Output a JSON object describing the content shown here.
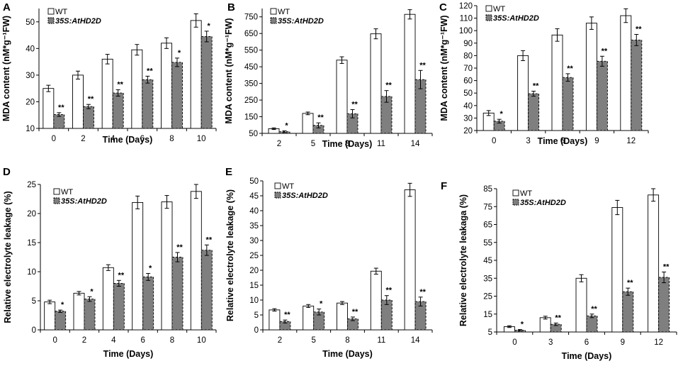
{
  "colors": {
    "wt_fill": "#ffffff",
    "oe_fill": "#7f7f7f",
    "stroke": "#000000"
  },
  "chart_data": [
    {
      "panel": "A",
      "type": "bar",
      "xlabel": "Time (Days)",
      "ylabel": "MDA content (nM*g⁻¹FW)",
      "ylim": [
        10,
        55
      ],
      "yticks": [
        10,
        20,
        30,
        40,
        50
      ],
      "categories": [
        "0",
        "2",
        "4",
        "6",
        "8",
        "10"
      ],
      "legend": [
        "WT",
        "35S:AtHD2D"
      ],
      "legend_pos": "top-left",
      "series": [
        {
          "name": "WT",
          "values": [
            25,
            30,
            36,
            39.5,
            42,
            50.5
          ],
          "errors": [
            1.2,
            1.5,
            1.8,
            2,
            2,
            2.5
          ],
          "sig": [
            "",
            "",
            "",
            "",
            "",
            ""
          ]
        },
        {
          "name": "35S:AtHD2D",
          "values": [
            15.2,
            18.2,
            23.3,
            28.3,
            34.8,
            44.5
          ],
          "errors": [
            0.7,
            0.8,
            1.2,
            1.3,
            1.6,
            2
          ],
          "sig": [
            "**",
            "**",
            "**",
            "**",
            "*",
            "*"
          ]
        }
      ]
    },
    {
      "panel": "B",
      "type": "bar",
      "xlabel": "Time (Days)",
      "ylabel": "MDA content (nM*g⁻¹FW)",
      "ylim": [
        50,
        800
      ],
      "yticks": [
        50,
        150,
        250,
        350,
        450,
        550,
        650,
        750
      ],
      "categories": [
        "2",
        "5",
        "8",
        "11",
        "14"
      ],
      "legend": [
        "WT",
        "35S:AtHD2D"
      ],
      "legend_pos": "top-left",
      "series": [
        {
          "name": "WT",
          "values": [
            78,
            170,
            490,
            648,
            765
          ],
          "errors": [
            5,
            8,
            20,
            30,
            28
          ],
          "sig": [
            "",
            "",
            "",
            "",
            ""
          ]
        },
        {
          "name": "35S:AtHD2D",
          "values": [
            60,
            98,
            168,
            272,
            373
          ],
          "errors": [
            5,
            15,
            25,
            35,
            55
          ],
          "sig": [
            "*",
            "**",
            "**",
            "**",
            "**"
          ]
        }
      ]
    },
    {
      "panel": "C",
      "type": "bar",
      "xlabel": "Time (Days)",
      "ylabel": "MDA content (nM*g⁻¹FW)",
      "ylim": [
        20,
        120
      ],
      "yticks": [
        20,
        30,
        40,
        50,
        60,
        70,
        80,
        90,
        100,
        110,
        120
      ],
      "categories": [
        "0",
        "3",
        "6",
        "9",
        "12"
      ],
      "legend": [
        "WT",
        "35S:AtHD2D"
      ],
      "legend_pos": "top-left",
      "series": [
        {
          "name": "WT",
          "values": [
            34,
            80,
            96.5,
            106,
            112
          ],
          "errors": [
            2,
            4,
            5,
            5,
            5.5
          ],
          "sig": [
            "",
            "",
            "",
            "",
            ""
          ]
        },
        {
          "name": "35S:AtHD2D",
          "values": [
            27.5,
            49.5,
            62.5,
            75.5,
            92.5
          ],
          "errors": [
            1.5,
            2,
            3,
            4,
            4.5
          ],
          "sig": [
            "*",
            "**",
            "**",
            "**",
            "**"
          ]
        }
      ]
    },
    {
      "panel": "D",
      "type": "bar",
      "xlabel": "Time (Days)",
      "ylabel": "Relative electrolyte leakage (%)",
      "ylim": [
        0,
        25
      ],
      "yticks": [
        0,
        5,
        10,
        15,
        20,
        25
      ],
      "categories": [
        "0",
        "2",
        "4",
        "6",
        "8",
        "10"
      ],
      "legend": [
        "WT",
        "35S:AtHD2D"
      ],
      "legend_pos": "top-left",
      "series": [
        {
          "name": "WT",
          "values": [
            4.8,
            6.3,
            10.7,
            21.9,
            22,
            23.8
          ],
          "errors": [
            0.3,
            0.3,
            0.5,
            1.1,
            1.1,
            1.2
          ],
          "sig": [
            "",
            "",
            "",
            "",
            "",
            ""
          ]
        },
        {
          "name": "35S:AtHD2D",
          "values": [
            3.2,
            5.3,
            8,
            9.1,
            12.5,
            13.7
          ],
          "errors": [
            0.2,
            0.4,
            0.5,
            0.6,
            0.8,
            0.9
          ],
          "sig": [
            "*",
            "*",
            "**",
            "*",
            "**",
            "**"
          ]
        }
      ]
    },
    {
      "panel": "E",
      "type": "bar",
      "xlabel": "Time (Days)",
      "ylabel": "Relative electrolyte leakage (%)",
      "ylim": [
        0,
        50
      ],
      "yticks": [
        0,
        5,
        10,
        15,
        20,
        25,
        30,
        35,
        40,
        45,
        50
      ],
      "categories": [
        "2",
        "5",
        "8",
        "11",
        "14"
      ],
      "legend": [
        "WT",
        "35S:AtHD2D"
      ],
      "legend_pos": "top-left",
      "series": [
        {
          "name": "WT",
          "values": [
            6.7,
            8,
            9,
            19.7,
            47
          ],
          "errors": [
            0.4,
            0.5,
            0.5,
            1,
            2.2
          ],
          "sig": [
            "",
            "",
            "",
            "",
            ""
          ]
        },
        {
          "name": "35S:AtHD2D",
          "values": [
            2.8,
            6,
            3.7,
            10,
            9.5
          ],
          "errors": [
            0.5,
            1,
            0.6,
            1.5,
            1.5
          ],
          "sig": [
            "**",
            "*",
            "**",
            "**",
            "**"
          ]
        }
      ]
    },
    {
      "panel": "F",
      "type": "bar",
      "xlabel": "Time (Days)",
      "ylabel": "Relative electrolyte leakaga (%)",
      "ylim": [
        5,
        85
      ],
      "yticks": [
        5,
        15,
        25,
        35,
        45,
        55,
        65,
        75,
        85
      ],
      "categories": [
        "0",
        "3",
        "6",
        "9",
        "12"
      ],
      "legend": [
        "WT",
        "35S:AtHD2D"
      ],
      "legend_pos": "top-left",
      "series": [
        {
          "name": "WT",
          "values": [
            8,
            13,
            35,
            74.5,
            81.5
          ],
          "errors": [
            0.5,
            0.8,
            2,
            4,
            3.5
          ],
          "sig": [
            "",
            "",
            "",
            "",
            ""
          ]
        },
        {
          "name": "35S:AtHD2D",
          "values": [
            6,
            9.3,
            14,
            27.5,
            35.5
          ],
          "errors": [
            0.4,
            0.7,
            1,
            2,
            3
          ],
          "sig": [
            "*",
            "**",
            "**",
            "**",
            "**"
          ]
        }
      ]
    }
  ]
}
